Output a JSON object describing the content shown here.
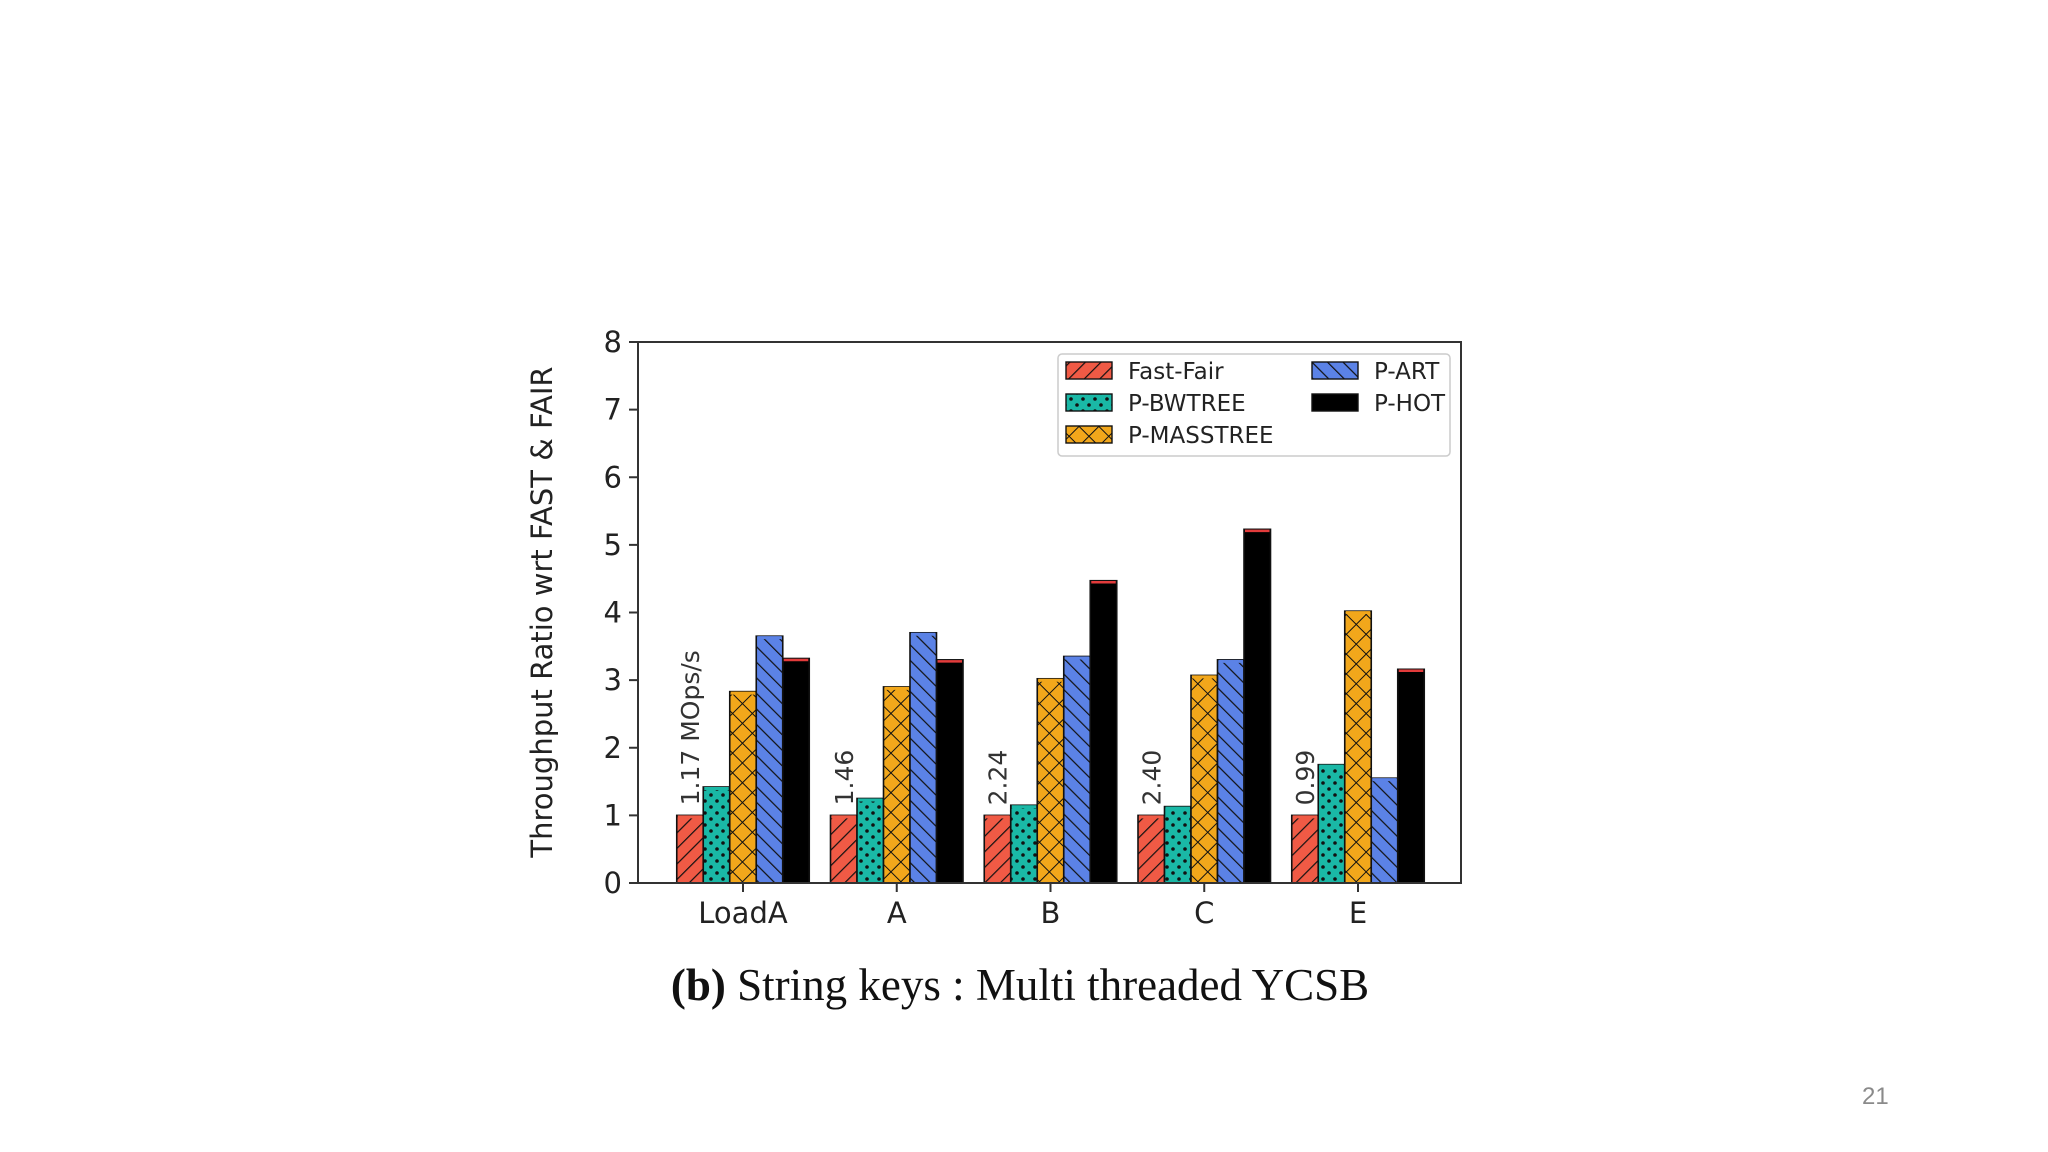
{
  "slide": {
    "page_number": "21"
  },
  "chart_data": {
    "type": "bar",
    "caption_prefix": "(b)",
    "caption_text": " String keys : Multi threaded YCSB",
    "xlabel": "",
    "ylabel": "Throughput Ratio wrt FAST & FAIR",
    "ylim": [
      0,
      8
    ],
    "yticks": [
      0,
      1,
      2,
      3,
      4,
      5,
      6,
      7,
      8
    ],
    "categories": [
      "LoadA",
      "A",
      "B",
      "C",
      "E"
    ],
    "series": [
      {
        "name": "Fast-Fair",
        "color": "#f05a45",
        "pattern": "diagonal-hatch",
        "values": [
          1.0,
          1.0,
          1.0,
          1.0,
          1.0
        ]
      },
      {
        "name": "P-BWTREE",
        "color": "#1ab8a6",
        "pattern": "dots",
        "values": [
          1.42,
          1.25,
          1.15,
          1.13,
          1.75
        ]
      },
      {
        "name": "P-MASSTREE",
        "color": "#f2a71b",
        "pattern": "crosshatch",
        "values": [
          2.83,
          2.9,
          3.02,
          3.07,
          4.02
        ]
      },
      {
        "name": "P-ART",
        "color": "#5b82e6",
        "pattern": "back-diagonal-hatch",
        "values": [
          3.65,
          3.7,
          3.35,
          3.3,
          1.55
        ]
      },
      {
        "name": "P-HOT",
        "color": "#000000",
        "pattern": "solid",
        "values": [
          3.32,
          3.3,
          4.47,
          5.23,
          3.16
        ]
      }
    ],
    "annotations": [
      {
        "category": "LoadA",
        "text": "1.17  MOps/s"
      },
      {
        "category": "A",
        "text": "1.46"
      },
      {
        "category": "B",
        "text": "2.24"
      },
      {
        "category": "C",
        "text": "2.40"
      },
      {
        "category": "E",
        "text": "0.99"
      }
    ],
    "legend": {
      "placement": "top-right",
      "columns": [
        [
          "Fast-Fair",
          "P-BWTREE",
          "P-MASSTREE"
        ],
        [
          "P-ART",
          "P-HOT"
        ]
      ]
    },
    "grid": false
  }
}
